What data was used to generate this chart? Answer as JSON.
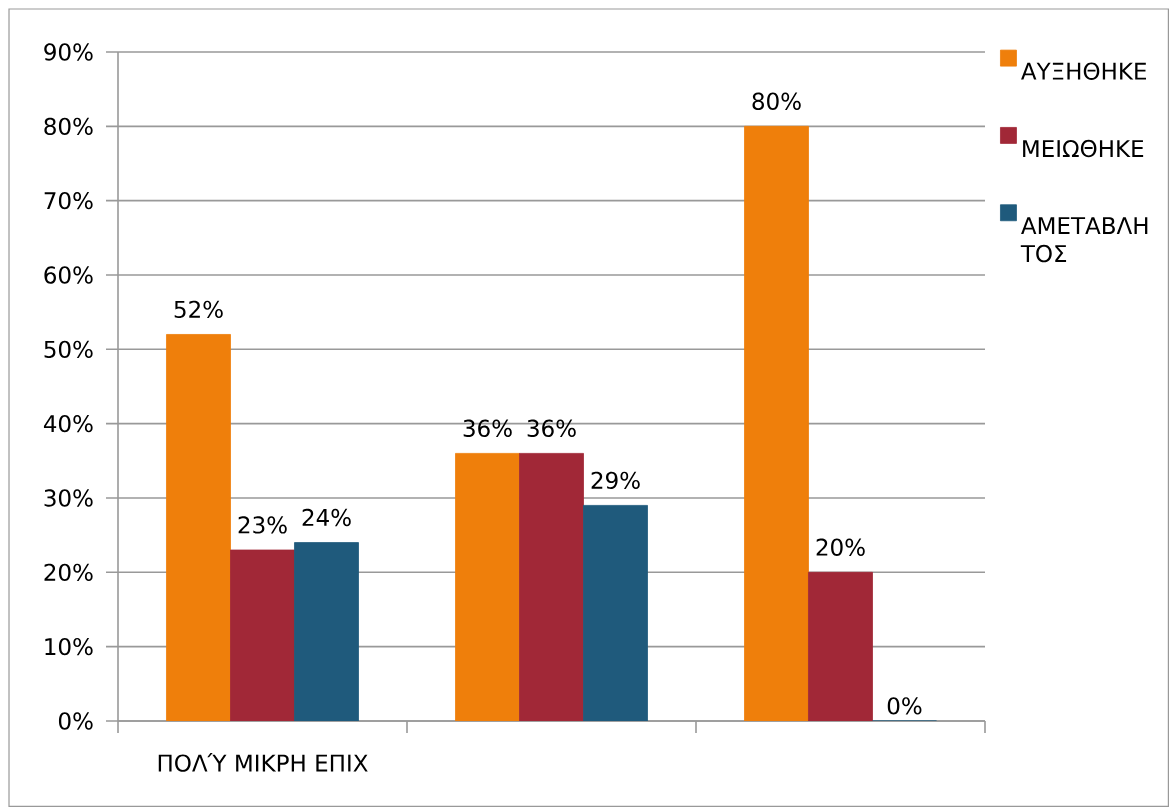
{
  "chart_data": {
    "type": "bar",
    "categories": [
      "ΠΟΛΎ ΜΙΚΡΗ ΕΠΙΧ",
      null,
      null
    ],
    "series": [
      {
        "name": "ΑΥΞΗΘΗΚΕ",
        "color": "#ef7f0b",
        "values": [
          52,
          36,
          80
        ],
        "value_labels": [
          "52%",
          "36%",
          "80%"
        ]
      },
      {
        "name": "ΜΕΙΩΘΗΚΕ",
        "color": "#a12837",
        "values": [
          23,
          36,
          20
        ],
        "value_labels": [
          "23%",
          "36%",
          "20%"
        ]
      },
      {
        "name": "ΑΜΕΤΑΒΛΗ ΤΟΣ",
        "color": "#1f5a7c",
        "values": [
          24,
          29,
          0
        ],
        "value_labels": [
          "24%",
          "29%",
          "0%"
        ]
      }
    ],
    "ylim": [
      0,
      90
    ],
    "yticks": [
      {
        "value": 0,
        "label": "0%"
      },
      {
        "value": 10,
        "label": "10%"
      },
      {
        "value": 20,
        "label": "20%"
      },
      {
        "value": 30,
        "label": "30%"
      },
      {
        "value": 40,
        "label": "40%"
      },
      {
        "value": 50,
        "label": "50%"
      },
      {
        "value": 60,
        "label": "60%"
      },
      {
        "value": 70,
        "label": "70%"
      },
      {
        "value": 80,
        "label": "80%"
      },
      {
        "value": 90,
        "label": "90%"
      }
    ],
    "grid": "y",
    "legend": "right"
  }
}
